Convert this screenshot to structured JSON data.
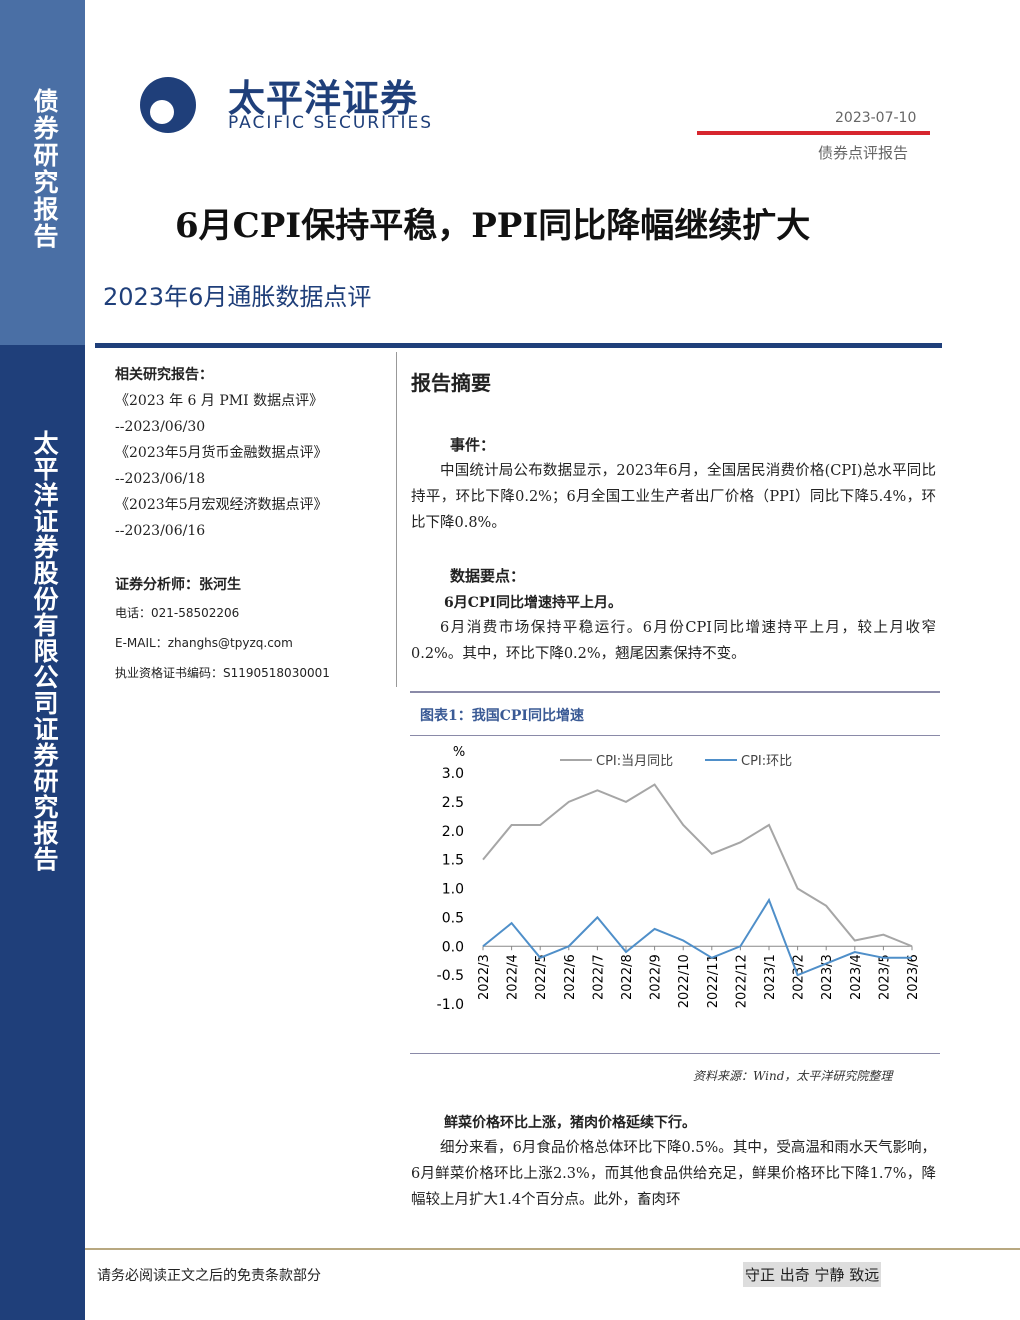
{
  "sidebar": {
    "top": "债券研究报告",
    "bottom": "太平洋证券股份有限公司证券研究报告"
  },
  "header": {
    "brand_cn": "太平洋证券",
    "brand_en": "PACIFIC SECURITIES",
    "date": "2023-07-10",
    "report_type": "债券点评报告",
    "title": "6月CPI保持平稳，PPI同比降幅继续扩大",
    "subtitle": "2023年6月通胀数据点评"
  },
  "left": {
    "related_heading": "相关研究报告：",
    "related": [
      "《2023 年 6 月 PMI 数据点评》",
      "--2023/06/30",
      "《2023年5月货币金融数据点评》",
      "--2023/06/18",
      "《2023年5月宏观经济数据点评》",
      "--2023/06/16"
    ],
    "analyst": "证券分析师：张河生",
    "phone": "电话：021-58502206",
    "email": "E-MAIL：zhanghs@tpyzq.com",
    "license": "执业资格证书编码：S1190518030001"
  },
  "summary": {
    "heading": "报告摘要",
    "event_heading": "事件：",
    "event": "中国统计局公布数据显示，2023年6月，全国居民消费价格(CPI)总水平同比持平，环比下降0.2%；6月全国工业生产者出厂价格（PPI）同比下降5.4%，环比下降0.8%。",
    "points_heading": "数据要点：",
    "point1_heading": "6月CPI同比增速持平上月。",
    "point1": "6月消费市场保持平稳运行。6月份CPI同比增速持平上月，较上月收窄0.2%。其中，环比下降0.2%，翘尾因素保持不变。",
    "point2_heading": "鲜菜价格环比上涨，猪肉价格延续下行。",
    "point2": "细分来看，6月食品价格总体环比下降0.5%。其中，受高温和雨水天气影响，6月鲜菜价格环比上涨2.3%，而其他食品供给充足，鲜果价格环比下降1.7%，降幅较上月扩大1.4个百分点。此外，畜肉环"
  },
  "chart_data": {
    "type": "line",
    "title": "图表1：我国CPI同比增速",
    "y_label": "%",
    "source": "资料来源：Wind，太平洋研究院整理",
    "categories": [
      "2022/3",
      "2022/4",
      "2022/5",
      "2022/6",
      "2022/7",
      "2022/8",
      "2022/9",
      "2022/10",
      "2022/11",
      "2022/12",
      "2023/1",
      "2023/2",
      "2023/3",
      "2023/4",
      "2023/5",
      "2023/6"
    ],
    "series": [
      {
        "name": "CPI:当月同比",
        "color": "#a6a6a6",
        "values": [
          1.5,
          2.1,
          2.1,
          2.5,
          2.7,
          2.5,
          2.8,
          2.1,
          1.6,
          1.8,
          2.1,
          1.0,
          0.7,
          0.1,
          0.2,
          0.0
        ]
      },
      {
        "name": "CPI:环比",
        "color": "#4f8fc9",
        "values": [
          0.0,
          0.4,
          -0.2,
          0.0,
          0.5,
          -0.1,
          0.3,
          0.1,
          -0.2,
          0.0,
          0.8,
          -0.5,
          -0.3,
          -0.1,
          -0.2,
          -0.2
        ]
      }
    ],
    "ylim": [
      -1,
      3
    ],
    "yticks": [
      {
        "value": -1,
        "label": "-1.0"
      },
      -0.5,
      {
        "value": 0,
        "label": "0.0"
      },
      0.5,
      {
        "value": 1,
        "label": "1.0"
      },
      1.5,
      {
        "value": 2,
        "label": "2.0"
      },
      2.5,
      {
        "value": 3,
        "label": "3.0"
      }
    ]
  },
  "footer": {
    "disclaimer": "请务必阅读正文之后的免责条款部分",
    "motto": "守正 出奇 宁静 致远"
  }
}
